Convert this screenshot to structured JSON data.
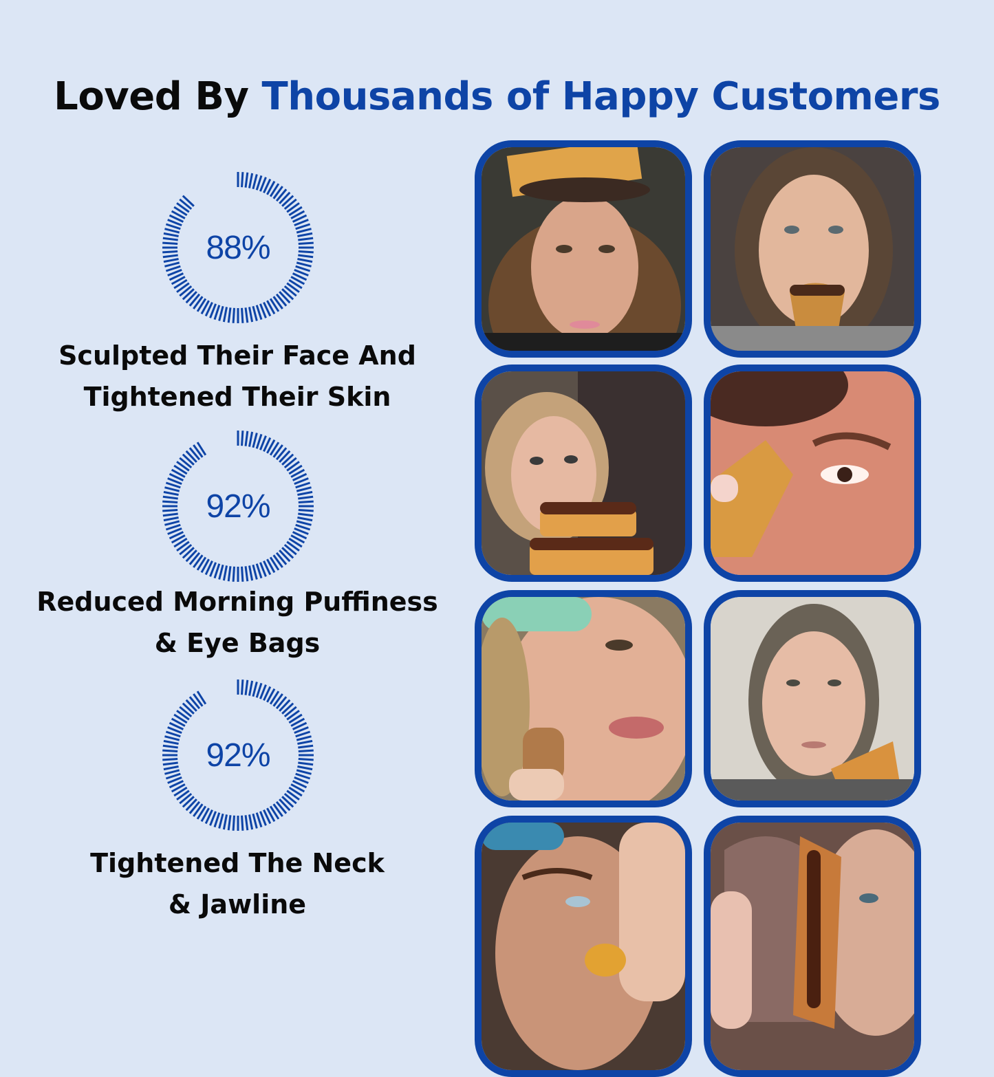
{
  "heading": {
    "part1": "Loved By ",
    "part2": "Thousands of Happy Customers"
  },
  "colors": {
    "accent": "#0e44a6",
    "background": "#dce6f5",
    "text": "#0a0a0a"
  },
  "stats": [
    {
      "percent_label": "88%",
      "percent": 88,
      "line1": "Sculpted Their Face And",
      "line2": "Tightened Their Skin"
    },
    {
      "percent_label": "92%",
      "percent": 92,
      "line1": "Reduced Morning Puffiness",
      "line2": "& Eye Bags"
    },
    {
      "percent_label": "92%",
      "percent": 92,
      "line1": "Tightened The Neck",
      "line2": "& Jawline"
    }
  ]
}
